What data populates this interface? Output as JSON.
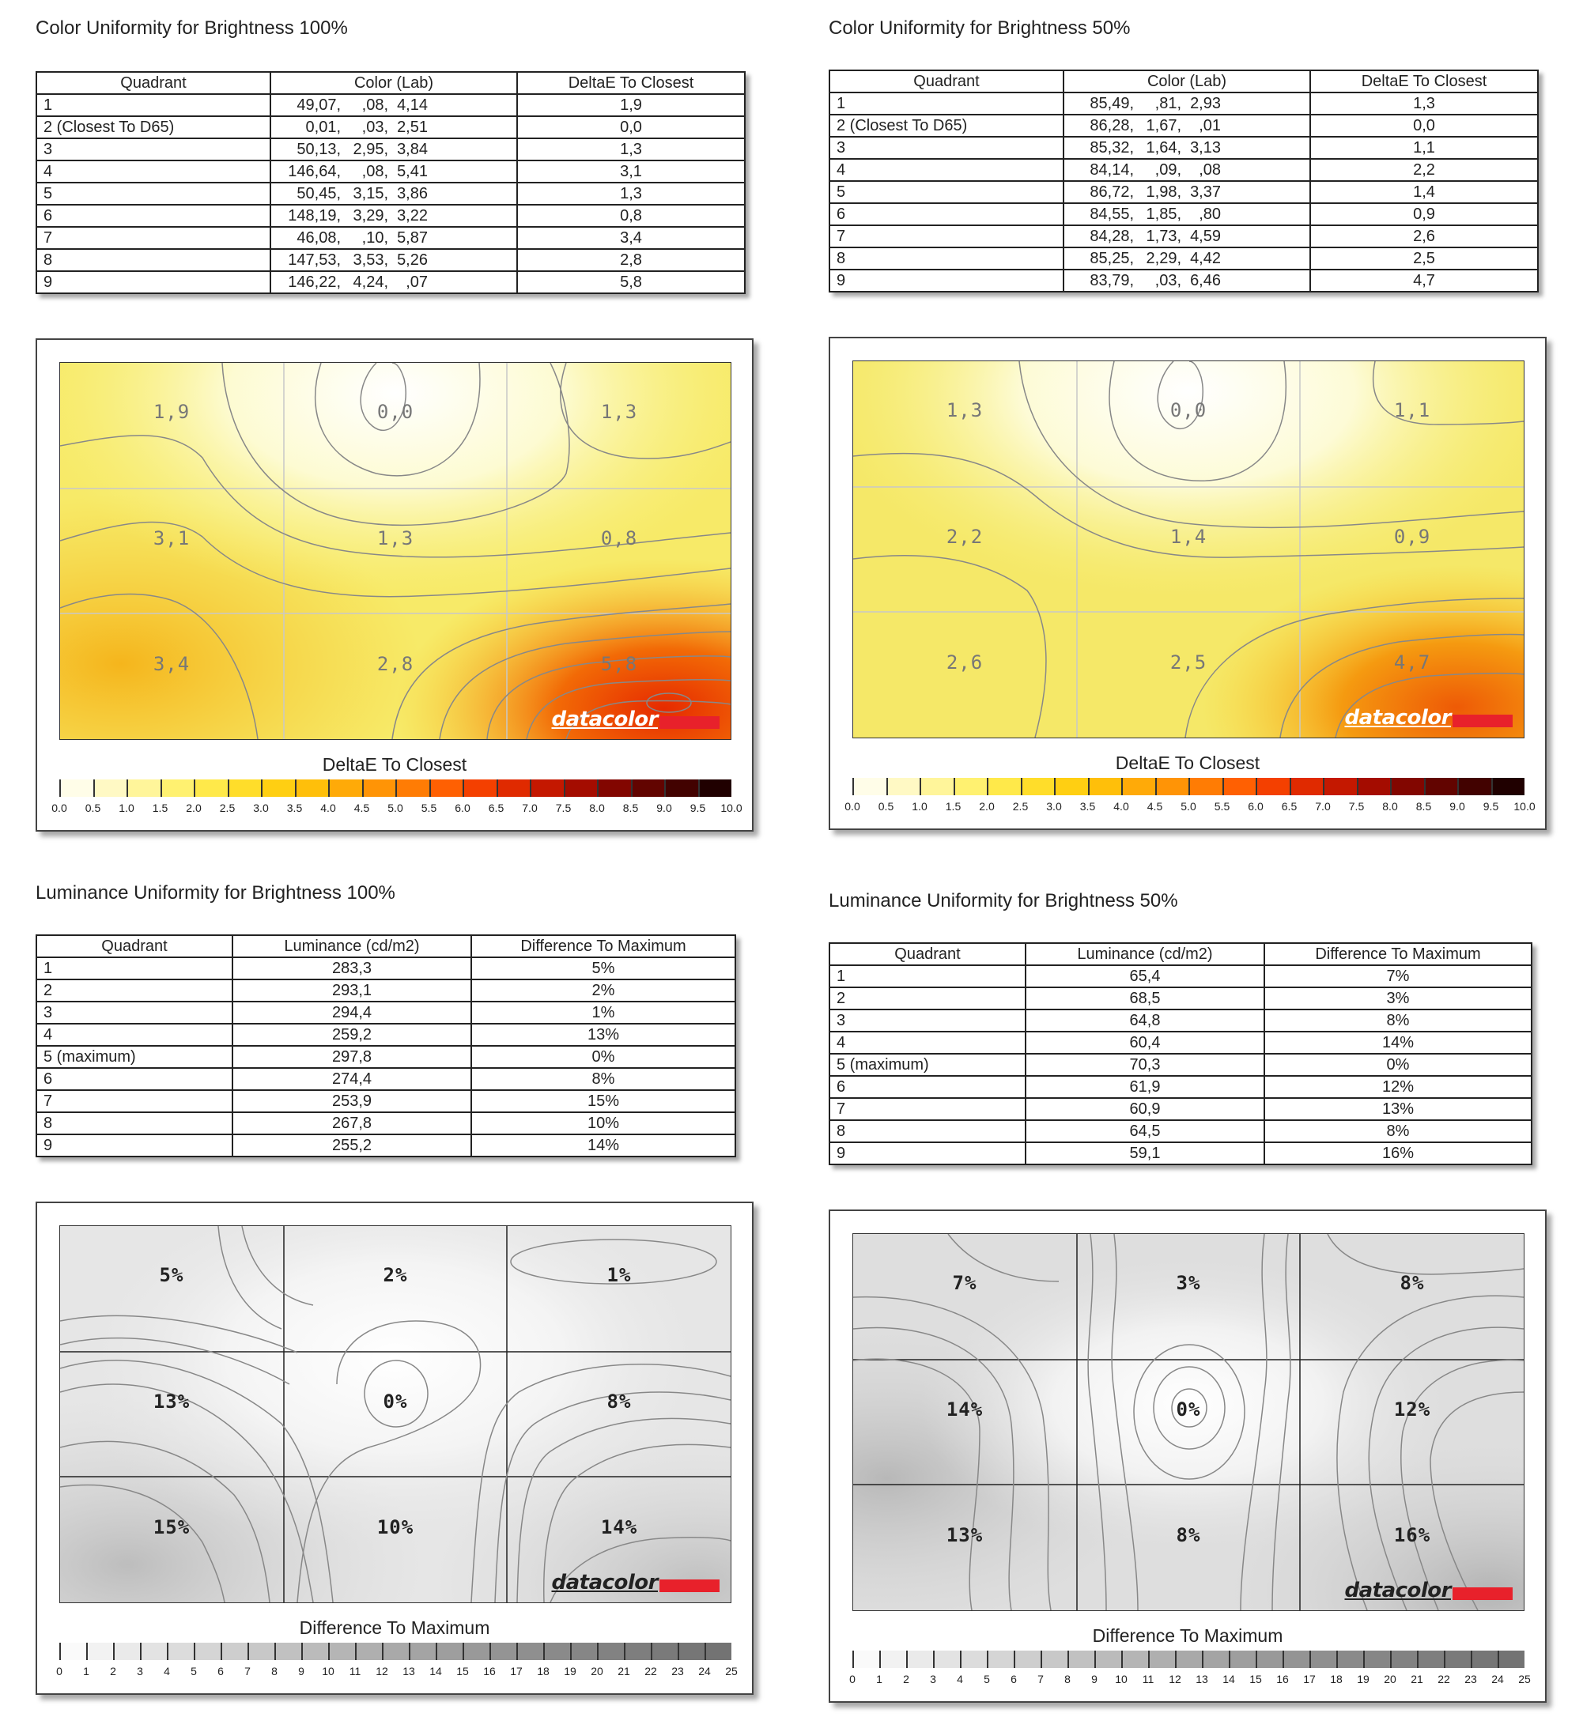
{
  "color100": {
    "title": "Color Uniformity for Brightness 100%",
    "headers": [
      "Quadrant",
      "Color (Lab)",
      "DeltaE To Closest"
    ],
    "rows": [
      {
        "q": "1",
        "a": "49,07,",
        "b": ",08,",
        "c": "4,14",
        "d": "1,9"
      },
      {
        "q": "2 (Closest To D65)",
        "a": "0,01,",
        "b": ",03,",
        "c": "2,51",
        "d": "0,0"
      },
      {
        "q": "3",
        "a": "50,13,",
        "b": "2,95,",
        "c": "3,84",
        "d": "1,3"
      },
      {
        "q": "4",
        "a": "146,64,",
        "b": ",08,",
        "c": "5,41",
        "d": "3,1"
      },
      {
        "q": "5",
        "a": "50,45,",
        "b": "3,15,",
        "c": "3,86",
        "d": "1,3"
      },
      {
        "q": "6",
        "a": "148,19,",
        "b": "3,29,",
        "c": "3,22",
        "d": "0,8"
      },
      {
        "q": "7",
        "a": "46,08,",
        "b": ",10,",
        "c": "5,87",
        "d": "3,4"
      },
      {
        "q": "8",
        "a": "147,53,",
        "b": "3,53,",
        "c": "5,26",
        "d": "2,8"
      },
      {
        "q": "9",
        "a": "146,22,",
        "b": "4,24,",
        "c": ",07",
        "d": "5,8"
      }
    ],
    "grid_labels": [
      "1,9",
      "0,0",
      "1,3",
      "3,1",
      "1,3",
      "0,8",
      "3,4",
      "2,8",
      "5,8"
    ],
    "scale_title": "DeltaE To Closest",
    "logo": "datacolor"
  },
  "color50": {
    "title": "Color Uniformity for Brightness 50%",
    "headers": [
      "Quadrant",
      "Color (Lab)",
      "DeltaE To Closest"
    ],
    "rows": [
      {
        "q": "1",
        "a": "85,49,",
        "b": ",81,",
        "c": "2,93",
        "d": "1,3"
      },
      {
        "q": "2 (Closest To D65)",
        "a": "86,28,",
        "b": "1,67,",
        "c": ",01",
        "d": "0,0"
      },
      {
        "q": "3",
        "a": "85,32,",
        "b": "1,64,",
        "c": "3,13",
        "d": "1,1"
      },
      {
        "q": "4",
        "a": "84,14,",
        "b": ",09,",
        "c": ",08",
        "d": "2,2"
      },
      {
        "q": "5",
        "a": "86,72,",
        "b": "1,98,",
        "c": "3,37",
        "d": "1,4"
      },
      {
        "q": "6",
        "a": "84,55,",
        "b": "1,85,",
        "c": ",80",
        "d": "0,9"
      },
      {
        "q": "7",
        "a": "84,28,",
        "b": "1,73,",
        "c": "4,59",
        "d": "2,6"
      },
      {
        "q": "8",
        "a": "85,25,",
        "b": "2,29,",
        "c": "4,42",
        "d": "2,5"
      },
      {
        "q": "9",
        "a": "83,79,",
        "b": ",03,",
        "c": "6,46",
        "d": "4,7"
      }
    ],
    "grid_labels": [
      "1,3",
      "0,0",
      "1,1",
      "2,2",
      "1,4",
      "0,9",
      "2,6",
      "2,5",
      "4,7"
    ],
    "scale_title": "DeltaE To Closest",
    "logo": "datacolor"
  },
  "lum100": {
    "title": "Luminance Uniformity for Brightness 100%",
    "headers": [
      "Quadrant",
      "Luminance (cd/m2)",
      "Difference To Maximum"
    ],
    "rows": [
      {
        "q": "1",
        "l": "283,3",
        "d": "5%"
      },
      {
        "q": "2",
        "l": "293,1",
        "d": "2%"
      },
      {
        "q": "3",
        "l": "294,4",
        "d": "1%"
      },
      {
        "q": "4",
        "l": "259,2",
        "d": "13%"
      },
      {
        "q": "5 (maximum)",
        "l": "297,8",
        "d": "0%"
      },
      {
        "q": "6",
        "l": "274,4",
        "d": "8%"
      },
      {
        "q": "7",
        "l": "253,9",
        "d": "15%"
      },
      {
        "q": "8",
        "l": "267,8",
        "d": "10%"
      },
      {
        "q": "9",
        "l": "255,2",
        "d": "14%"
      }
    ],
    "grid_labels": [
      "5%",
      "2%",
      "1%",
      "13%",
      "0%",
      "8%",
      "15%",
      "10%",
      "14%"
    ],
    "scale_title": "Difference To Maximum",
    "logo": "datacolor"
  },
  "lum50": {
    "title": "Luminance Uniformity for Brightness 50%",
    "headers": [
      "Quadrant",
      "Luminance (cd/m2)",
      "Difference To Maximum"
    ],
    "rows": [
      {
        "q": "1",
        "l": "65,4",
        "d": "7%"
      },
      {
        "q": "2",
        "l": "68,5",
        "d": "3%"
      },
      {
        "q": "3",
        "l": "64,8",
        "d": "8%"
      },
      {
        "q": "4",
        "l": "60,4",
        "d": "14%"
      },
      {
        "q": "5 (maximum)",
        "l": "70,3",
        "d": "0%"
      },
      {
        "q": "6",
        "l": "61,9",
        "d": "12%"
      },
      {
        "q": "7",
        "l": "60,9",
        "d": "13%"
      },
      {
        "q": "8",
        "l": "64,5",
        "d": "8%"
      },
      {
        "q": "9",
        "l": "59,1",
        "d": "16%"
      }
    ],
    "grid_labels": [
      "7%",
      "3%",
      "8%",
      "14%",
      "0%",
      "12%",
      "13%",
      "8%",
      "16%"
    ],
    "scale_title": "Difference To Maximum",
    "logo": "datacolor"
  },
  "delta_scale_ticks": [
    "0.0",
    "0.5",
    "1.0",
    "1.5",
    "2.0",
    "2.5",
    "3.0",
    "3.5",
    "4.0",
    "4.5",
    "5.0",
    "5.5",
    "6.0",
    "6.5",
    "7.0",
    "7.5",
    "8.0",
    "8.5",
    "9.0",
    "9.5",
    "10.0"
  ],
  "lum_scale_ticks": [
    "0",
    "1",
    "2",
    "3",
    "4",
    "5",
    "6",
    "7",
    "8",
    "9",
    "10",
    "11",
    "12",
    "13",
    "14",
    "15",
    "16",
    "17",
    "18",
    "19",
    "20",
    "21",
    "22",
    "23",
    "24",
    "25"
  ],
  "colors": {
    "delta_scale": [
      "#fffde8",
      "#fff9c4",
      "#fff59a",
      "#fff170",
      "#ffe94a",
      "#ffdd2a",
      "#ffcf12",
      "#ffbf0a",
      "#ffaa08",
      "#ff9406",
      "#ff7c04",
      "#ff6002",
      "#f44000",
      "#e02a00",
      "#c41800",
      "#a40c00",
      "#820600",
      "#620400",
      "#420200",
      "#200000"
    ],
    "lum_scale": [
      "#fafafa",
      "#f2f2f2",
      "#eaeaea",
      "#e3e3e3",
      "#dcdcdc",
      "#d5d5d5",
      "#cecece",
      "#c8c8c8",
      "#c1c1c1",
      "#bbbbbb",
      "#b5b5b5",
      "#afafaf",
      "#a9a9a9",
      "#a4a4a4",
      "#9e9e9e",
      "#999999",
      "#949494",
      "#8f8f8f",
      "#8a8a8a",
      "#868686",
      "#828282",
      "#7e7e7e",
      "#7a7a7a",
      "#767676",
      "#737373"
    ],
    "brand_red": "#e8212b"
  }
}
